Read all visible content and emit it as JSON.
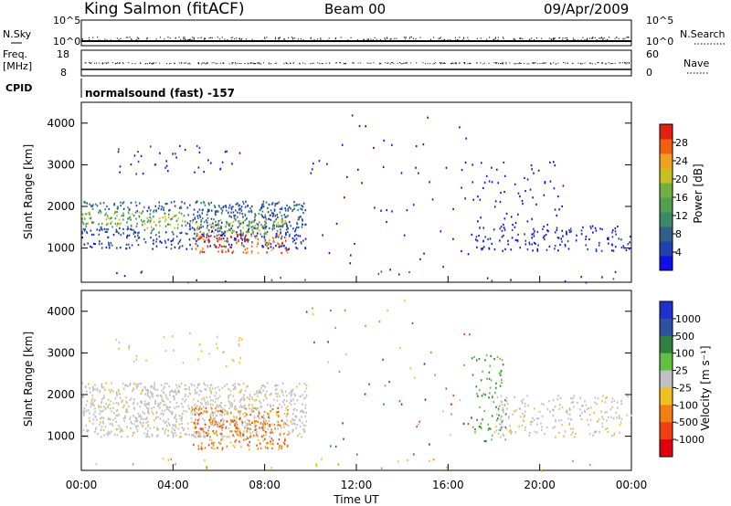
{
  "header": {
    "station": "King Salmon (fitACF)",
    "beam": "Beam 00",
    "date": "09/Apr/2009"
  },
  "status_panel": {
    "nsky_label": "N.Sky",
    "nsky_ticks": [
      "10^5",
      "10^0"
    ],
    "nsearch_label": "N.Search",
    "nsearch_ticks": [
      "10^5",
      "10^0"
    ],
    "freq_label_1": "Freq.",
    "freq_label_2": "[MHz]",
    "freq_ticks": [
      "18",
      "8"
    ],
    "nave_label": "Nave",
    "nave_ticks": [
      "60",
      "0"
    ],
    "cpid_label": "CPID",
    "cpid_text": "normalsound (fast) -157"
  },
  "time_axis": {
    "ticks": [
      "00:00",
      "04:00",
      "08:00",
      "12:00",
      "16:00",
      "20:00",
      "00:00"
    ],
    "label": "Time UT"
  },
  "chart_data": [
    {
      "type": "heatmap",
      "quantity": "Power",
      "ylabel": "Slant Range [km]",
      "xlabel": "Time UT",
      "xlim_hours": [
        0,
        24
      ],
      "ylim_km": [
        180,
        4500
      ],
      "y_ticks": [
        "1000",
        "2000",
        "3000",
        "4000"
      ],
      "colorbar": {
        "label": "Power [dB]",
        "ticks": [
          "4",
          "8",
          "12",
          "16",
          "20",
          "24",
          "28"
        ],
        "colors": [
          "#1010e6",
          "#2040b0",
          "#30608a",
          "#3a8a6a",
          "#50a050",
          "#70b040",
          "#c8c020",
          "#f0a020",
          "#f06010",
          "#e02010"
        ]
      },
      "regions": [
        {
          "t": [
            0,
            9.8
          ],
          "km": [
            1000,
            2200
          ],
          "level": "medium"
        },
        {
          "t": [
            4.5,
            9
          ],
          "km": [
            900,
            1700
          ],
          "level": "high"
        },
        {
          "t": [
            1.5,
            7
          ],
          "km": [
            2800,
            3500
          ],
          "level": "low"
        },
        {
          "t": [
            17,
            24
          ],
          "km": [
            900,
            3100
          ],
          "level": "low"
        }
      ]
    },
    {
      "type": "heatmap",
      "quantity": "Velocity",
      "ylabel": "Slant Range [km]",
      "xlabel": "Time UT",
      "xlim_hours": [
        0,
        24
      ],
      "ylim_km": [
        180,
        4500
      ],
      "y_ticks": [
        "1000",
        "2000",
        "3000",
        "4000"
      ],
      "colorbar": {
        "label": "Velocity [m s⁻¹]",
        "ticks": [
          "1000",
          "500",
          "100",
          "25",
          "-25",
          "-100",
          "-500",
          "-1000"
        ],
        "colors": [
          "#2030d0",
          "#3050a0",
          "#308040",
          "#60c040",
          "#c0c0c0",
          "#f0c020",
          "#f08010",
          "#f04010",
          "#e00010"
        ]
      },
      "regions": [
        {
          "t": [
            0,
            9.8
          ],
          "km": [
            1000,
            2300
          ],
          "value": "ground scatter"
        },
        {
          "t": [
            4.5,
            9
          ],
          "km": [
            700,
            1700
          ],
          "value": "-100 to -500"
        },
        {
          "t": [
            17,
            18.5
          ],
          "km": [
            900,
            3000
          ],
          "value": "100 to 500"
        },
        {
          "t": [
            18,
            24
          ],
          "km": [
            1000,
            2000
          ],
          "value": "ground scatter"
        }
      ]
    }
  ]
}
